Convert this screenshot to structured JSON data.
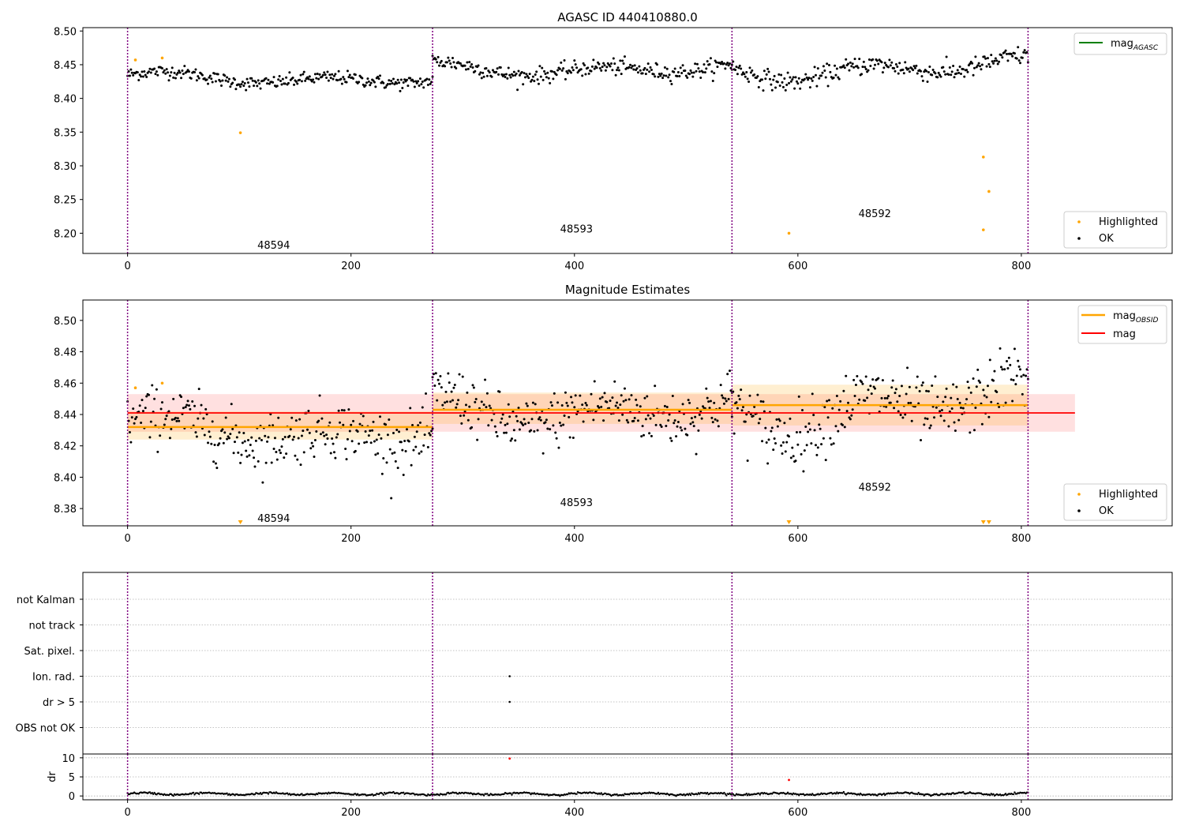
{
  "chart_data": [
    {
      "type": "scatter",
      "title": "AGASC ID 440410880.0",
      "xlim": [
        -40,
        935
      ],
      "ylim": [
        8.17,
        8.505
      ],
      "xticks": [
        0,
        200,
        400,
        600,
        800
      ],
      "yticks": [
        8.2,
        8.25,
        8.3,
        8.35,
        8.4,
        8.45,
        8.5
      ],
      "grid": false,
      "obsid_boundaries": [
        0,
        273,
        541,
        806
      ],
      "obsid_labels": [
        {
          "text": "48594",
          "x": 136,
          "y": 8.183
        },
        {
          "text": "48593",
          "x": 407,
          "y": 8.207
        },
        {
          "text": "48592",
          "x": 674,
          "y": 8.23
        }
      ],
      "legend_lines": [
        {
          "label": "mag",
          "sub": "AGASC",
          "color": "#008000"
        }
      ],
      "legend_lines_placement": "top-right",
      "legend_points": [
        {
          "label": "Highlighted",
          "color": "#ffa500"
        },
        {
          "label": "OK",
          "color": "#000000"
        }
      ],
      "legend_points_placement": "bottom-right",
      "segments": [
        {
          "x0": 0,
          "x1": 273,
          "mean": 8.43,
          "amp": 0.01,
          "noise": 0.005
        },
        {
          "x0": 273,
          "x1": 541,
          "mean": 8.445,
          "amp": 0.012,
          "noise": 0.006
        },
        {
          "x0": 541,
          "x1": 806,
          "mean": 8.444,
          "amp": 0.018,
          "noise": 0.007
        }
      ],
      "highlighted": [
        {
          "x": 7,
          "y": 8.457
        },
        {
          "x": 31,
          "y": 8.46
        },
        {
          "x": 101,
          "y": 8.349
        },
        {
          "x": 592,
          "y": 8.2
        },
        {
          "x": 766,
          "y": 8.313
        },
        {
          "x": 766,
          "y": 8.205
        },
        {
          "x": 771,
          "y": 8.262
        }
      ]
    },
    {
      "type": "scatter",
      "title": "Magnitude Estimates",
      "xlim": [
        -40,
        935
      ],
      "ylim": [
        8.369,
        8.513
      ],
      "xticks": [
        0,
        200,
        400,
        600,
        800
      ],
      "yticks": [
        8.38,
        8.4,
        8.42,
        8.44,
        8.46,
        8.48,
        8.5
      ],
      "grid": false,
      "obsid_boundaries": [
        0,
        273,
        541,
        806
      ],
      "obsid_labels": [
        {
          "text": "48594",
          "x": 136,
          "y": 8.374
        },
        {
          "text": "48593",
          "x": 407,
          "y": 8.384
        },
        {
          "text": "48592",
          "x": 674,
          "y": 8.394
        }
      ],
      "mag": {
        "value": 8.441,
        "low": 8.429,
        "high": 8.453,
        "x0": 0,
        "x1": 848,
        "color": "#ff0000"
      },
      "mag_obsid": [
        {
          "x0": 0,
          "x1": 273,
          "value": 8.432,
          "low": 8.424,
          "high": 8.442
        },
        {
          "x0": 273,
          "x1": 541,
          "value": 8.443,
          "low": 8.434,
          "high": 8.454
        },
        {
          "x0": 541,
          "x1": 806,
          "value": 8.446,
          "low": 8.433,
          "high": 8.459
        }
      ],
      "legend_lines": [
        {
          "label": "mag",
          "sub": "OBSID",
          "color": "#ffa500"
        },
        {
          "label": "mag",
          "sub": "",
          "color": "#ff0000"
        }
      ],
      "legend_lines_placement": "top-right",
      "legend_points": [
        {
          "label": "Highlighted",
          "color": "#ffa500"
        },
        {
          "label": "OK",
          "color": "#000000"
        }
      ],
      "legend_points_placement": "bottom-right",
      "segments": [
        {
          "x0": 0,
          "x1": 273,
          "mean": 8.43,
          "amp": 0.01,
          "noise": 0.009
        },
        {
          "x0": 273,
          "x1": 541,
          "mean": 8.444,
          "amp": 0.012,
          "noise": 0.009
        },
        {
          "x0": 541,
          "x1": 806,
          "mean": 8.446,
          "amp": 0.018,
          "noise": 0.01
        }
      ],
      "highlighted": [
        {
          "x": 7,
          "y": 8.457
        },
        {
          "x": 31,
          "y": 8.46
        }
      ],
      "off_scale_markers": [
        {
          "x": 101
        },
        {
          "x": 592
        },
        {
          "x": 766
        },
        {
          "x": 771
        }
      ]
    },
    {
      "type": "scatter",
      "title": "",
      "xlim": [
        -40,
        935
      ],
      "categories": [
        "not Kalman",
        "not track",
        "Sat. pixel.",
        "Ion. rad.",
        "dr > 5",
        "OBS not OK"
      ],
      "grid": true,
      "obsid_boundaries": [
        0,
        273,
        541,
        806
      ],
      "flag_points": [
        {
          "x": 342,
          "category": "Ion. rad."
        },
        {
          "x": 342,
          "category": "dr > 5"
        }
      ]
    },
    {
      "type": "scatter",
      "title": "",
      "xlim": [
        -40,
        935
      ],
      "ylim": [
        -1,
        11
      ],
      "ylabel": "dr",
      "xticks": [
        0,
        200,
        400,
        600,
        800
      ],
      "yticks": [
        0,
        5,
        10
      ],
      "grid": true,
      "obsid_boundaries": [
        0,
        273,
        541,
        806
      ],
      "baseline_points_range": [
        0,
        806
      ],
      "outliers": [
        {
          "x": 342,
          "y": 9.8
        },
        {
          "x": 592,
          "y": 4.2
        }
      ]
    }
  ]
}
